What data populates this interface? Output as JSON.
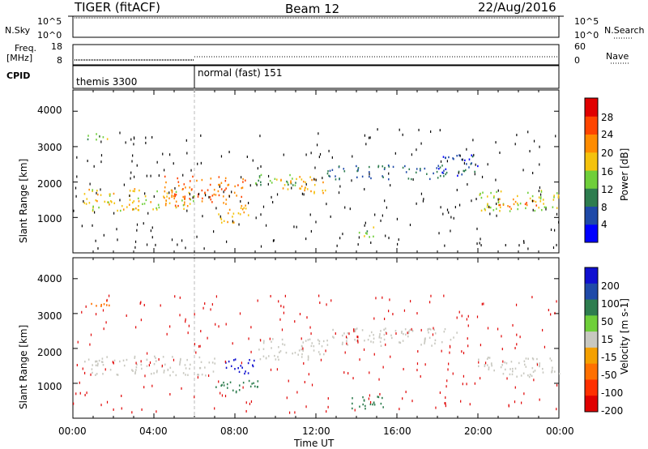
{
  "header": {
    "title": "TIGER (fitACF)",
    "beam": "Beam 12",
    "date": "22/Aug/2016"
  },
  "aux_panels": {
    "nsky_label": "N.Sky",
    "nsky_ticks": [
      "10^5",
      "10^0"
    ],
    "nsearch_label": "N.Search",
    "nsearch_ticks": [
      "10^5",
      "10^0"
    ],
    "freq_label_top": "Freq.",
    "freq_label_unit": "[MHz]",
    "freq_ticks": [
      "18",
      "8"
    ],
    "nave_label": "Nave",
    "nave_ticks": [
      "60",
      "0"
    ],
    "cpid_label": "CPID",
    "cpid_modes": [
      "themis 3300",
      "normal (fast) 151"
    ]
  },
  "x_axis": {
    "label": "Time UT",
    "ticks": [
      "00:00",
      "04:00",
      "08:00",
      "12:00",
      "16:00",
      "20:00",
      "00:00"
    ]
  },
  "colors": {
    "power_scale": [
      "#0000ff",
      "#1f4aa8",
      "#2e7d4f",
      "#6fcf3a",
      "#f4c20d",
      "#ff8c00",
      "#ff4500",
      "#e00000"
    ],
    "velocity_scale": [
      "#1010d0",
      "#1f4aa8",
      "#2e7d4f",
      "#6fcf3a",
      "#c8c8c0",
      "#f4a000",
      "#ff7000",
      "#ff3000",
      "#e00000"
    ]
  },
  "chart_data": [
    {
      "type": "heatmap",
      "title": "Power",
      "xlabel": "Time UT",
      "ylabel": "Slant Range [km]",
      "xlim": [
        "00:00",
        "24:00"
      ],
      "ylim": [
        0,
        4600
      ],
      "y_ticks": [
        "1000",
        "2000",
        "3000",
        "4000"
      ],
      "colorbar_label": "Power [dB]",
      "colorbar_ticks": [
        "28",
        "24",
        "20",
        "16",
        "12",
        "8",
        "4"
      ],
      "colorbar_range": [
        0,
        32
      ],
      "regions": [
        {
          "t0": 0.5,
          "t1": 6.0,
          "r0": 1200,
          "r1": 1850,
          "value": 18
        },
        {
          "t0": 4.5,
          "t1": 8.5,
          "r0": 1350,
          "r1": 2200,
          "value": 24
        },
        {
          "t0": 7.0,
          "t1": 8.8,
          "r0": 850,
          "r1": 1300,
          "value": 20
        },
        {
          "t0": 9.0,
          "t1": 11.0,
          "r0": 1900,
          "r1": 2300,
          "value": 12
        },
        {
          "t0": 10.0,
          "t1": 12.5,
          "r0": 1700,
          "r1": 2200,
          "value": 20
        },
        {
          "t0": 12.5,
          "t1": 18.5,
          "r0": 2100,
          "r1": 2500,
          "value": 8
        },
        {
          "t0": 18.0,
          "t1": 20.0,
          "r0": 2200,
          "r1": 2800,
          "value": 6
        },
        {
          "t0": 20.0,
          "t1": 24.0,
          "r0": 1200,
          "r1": 1800,
          "value": 16
        },
        {
          "t0": 21.0,
          "t1": 23.0,
          "r0": 1250,
          "r1": 1550,
          "value": 24
        },
        {
          "t0": 14.0,
          "t1": 15.0,
          "r0": 450,
          "r1": 750,
          "value": 14
        },
        {
          "t0": 0.5,
          "t1": 2.0,
          "r0": 3200,
          "r1": 3400,
          "value": 14
        }
      ]
    },
    {
      "type": "heatmap",
      "title": "Velocity",
      "xlabel": "Time UT",
      "ylabel": "Slant Range [km]",
      "xlim": [
        "00:00",
        "24:00"
      ],
      "ylim": [
        0,
        4600
      ],
      "y_ticks": [
        "1000",
        "2000",
        "3000",
        "4000"
      ],
      "colorbar_label": "Velocity [m s-1]",
      "colorbar_ticks": [
        "200",
        "100",
        "50",
        "15",
        "-15",
        "-50",
        "-100",
        "-200"
      ],
      "colorbar_range": [
        -250,
        250
      ],
      "regions": [
        {
          "t0": 0.5,
          "t1": 7.0,
          "r0": 1250,
          "r1": 1800,
          "value": 0
        },
        {
          "t0": 9.0,
          "t1": 12.5,
          "r0": 1700,
          "r1": 2300,
          "value": 0
        },
        {
          "t0": 12.5,
          "t1": 19.0,
          "r0": 2100,
          "r1": 2600,
          "value": 0
        },
        {
          "t0": 20.0,
          "t1": 24.0,
          "r0": 1200,
          "r1": 1800,
          "value": 0
        },
        {
          "t0": 7.5,
          "t1": 9.0,
          "r0": 1250,
          "r1": 1750,
          "value": 220
        },
        {
          "t0": 7.0,
          "t1": 9.5,
          "r0": 750,
          "r1": 1100,
          "value": 60
        },
        {
          "t0": 13.5,
          "t1": 15.5,
          "r0": 300,
          "r1": 700,
          "value": 60
        },
        {
          "t0": 0.5,
          "t1": 2.0,
          "r0": 3200,
          "r1": 3400,
          "value": -60
        }
      ]
    }
  ]
}
